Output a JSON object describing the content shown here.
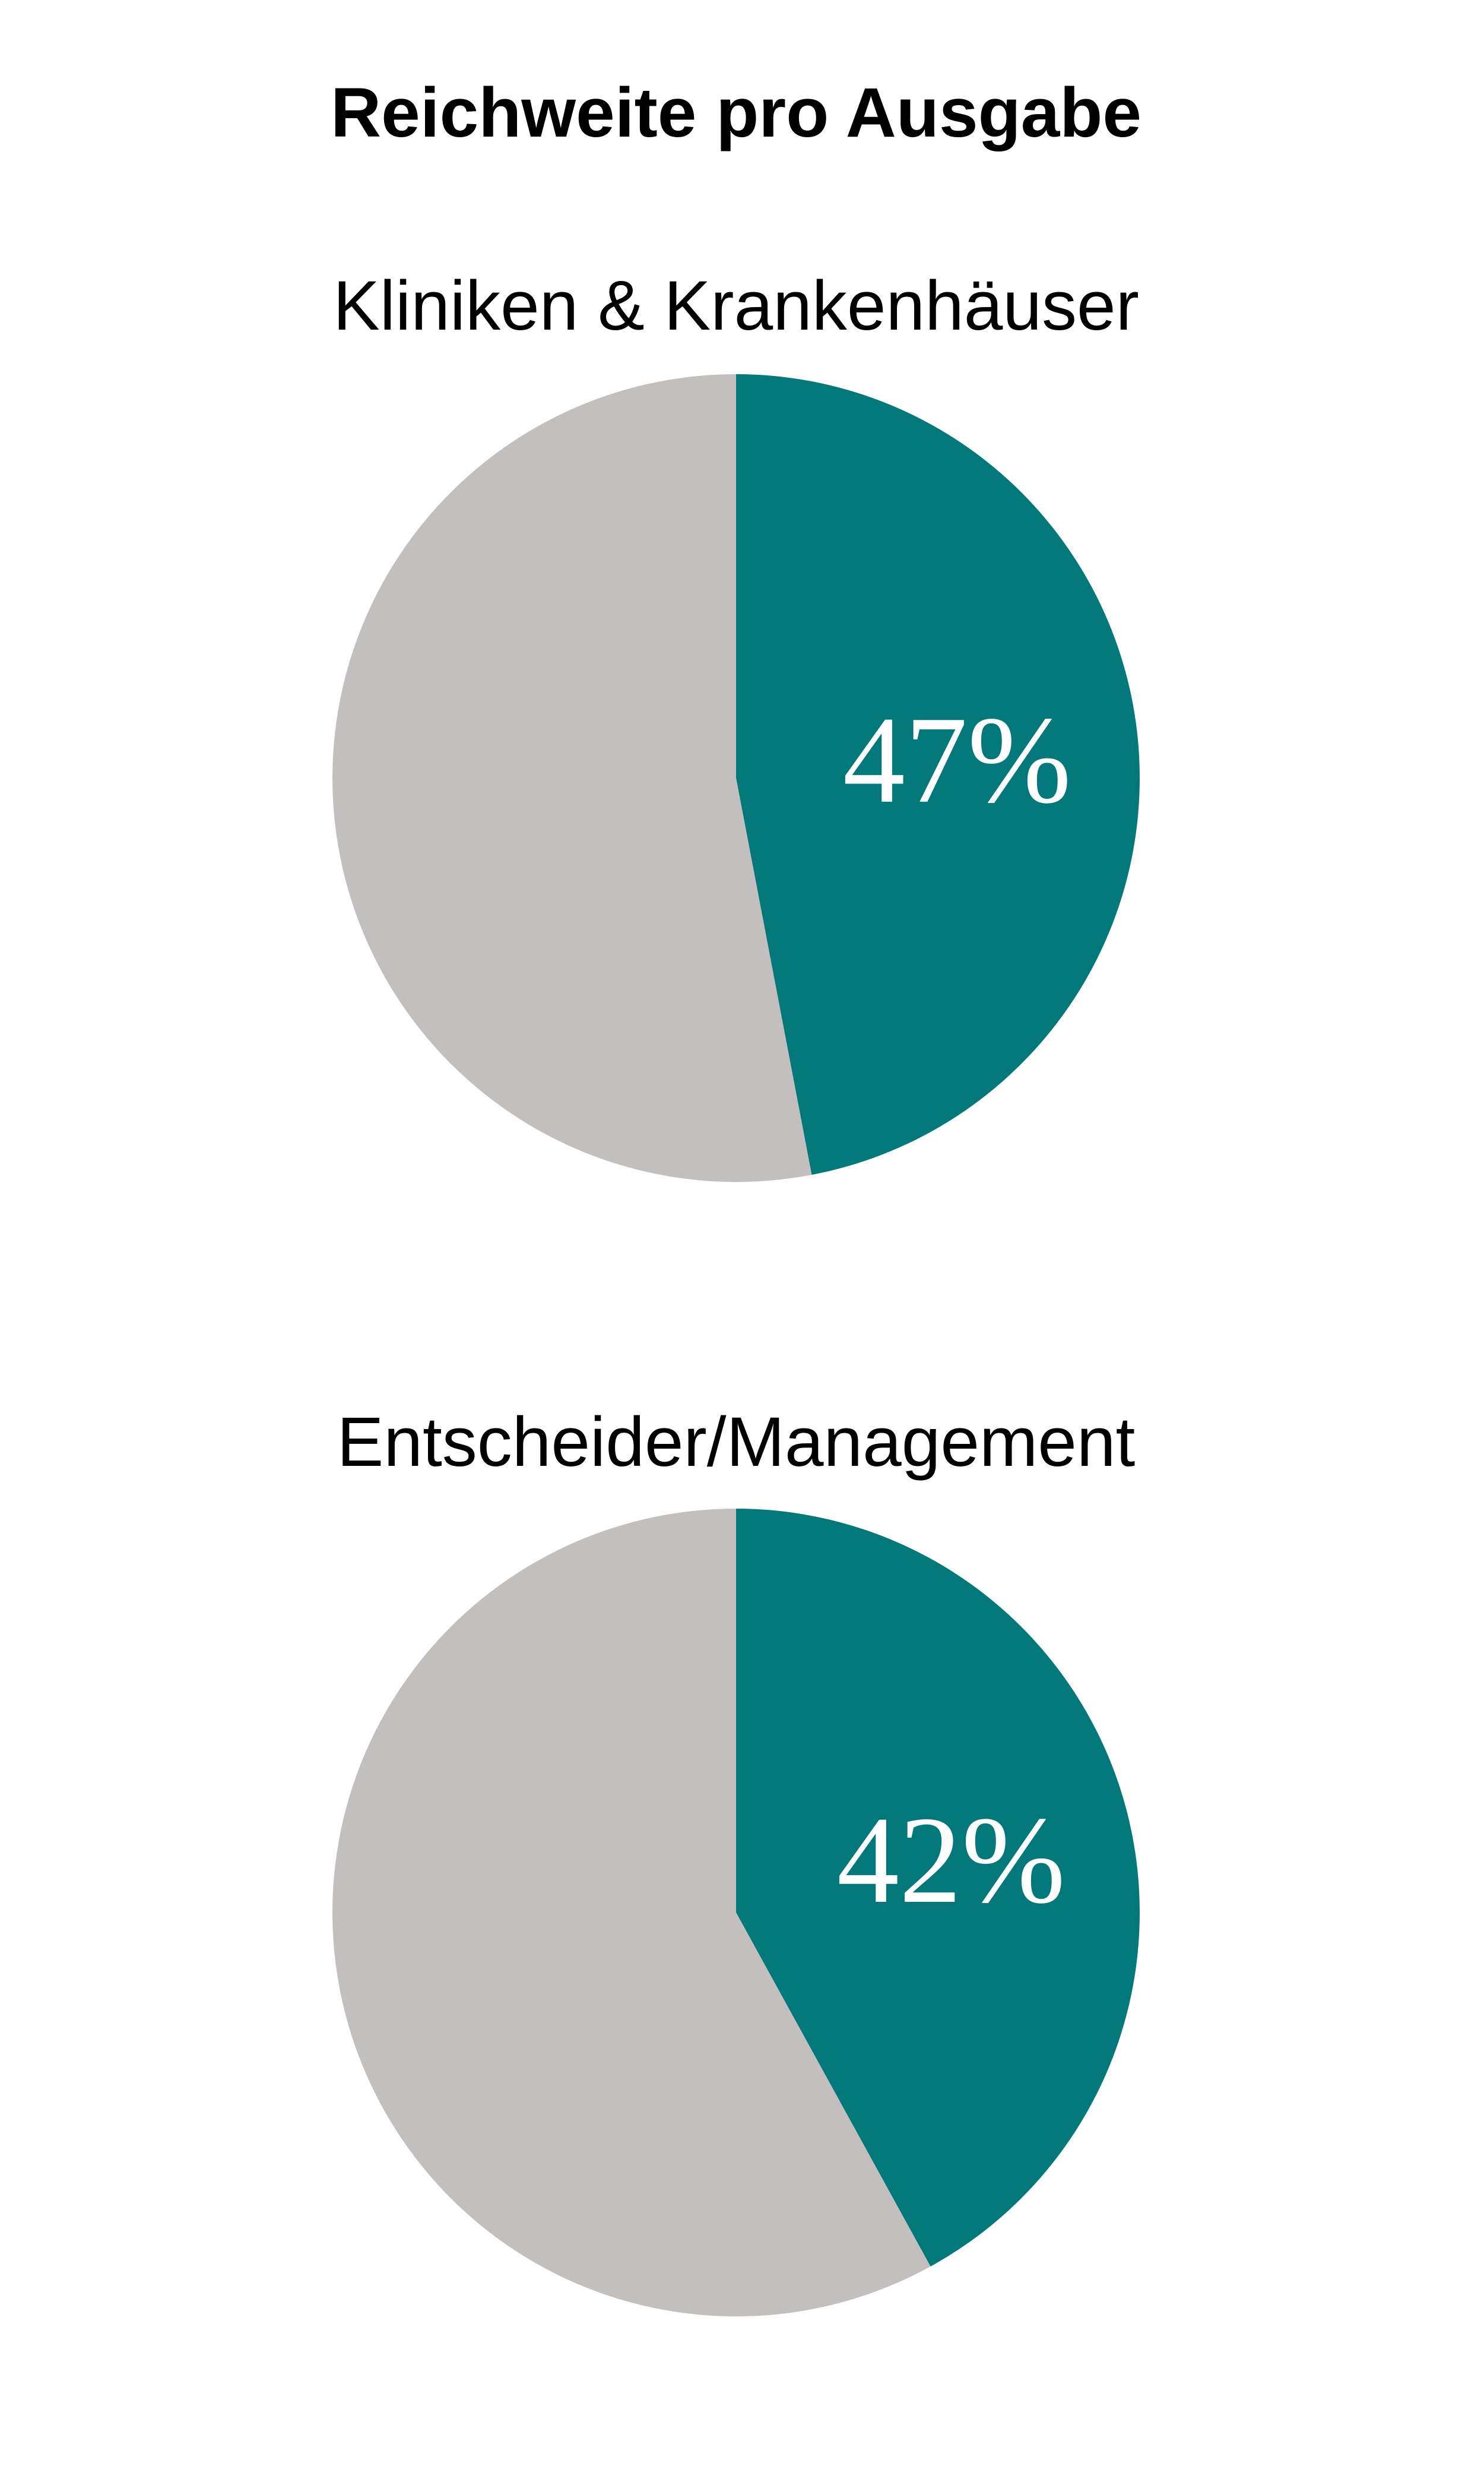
{
  "title": "Reichweite pro Ausgabe",
  "colors": {
    "highlight": "#02787a",
    "rest": "#c2bfbe",
    "label": "#ffffff",
    "background": "#ffffff"
  },
  "chart_data": [
    {
      "type": "pie",
      "title": "Kliniken & Krankenhäuser",
      "slices": [
        {
          "value": 47,
          "label": "47%",
          "color": "#02787a"
        },
        {
          "value": 53,
          "label": "",
          "color": "#c2bfbe"
        }
      ]
    },
    {
      "type": "pie",
      "title": "Entscheider/Management",
      "slices": [
        {
          "value": 42,
          "label": "42%",
          "color": "#02787a"
        },
        {
          "value": 58,
          "label": "",
          "color": "#c2bfbe"
        }
      ]
    }
  ]
}
